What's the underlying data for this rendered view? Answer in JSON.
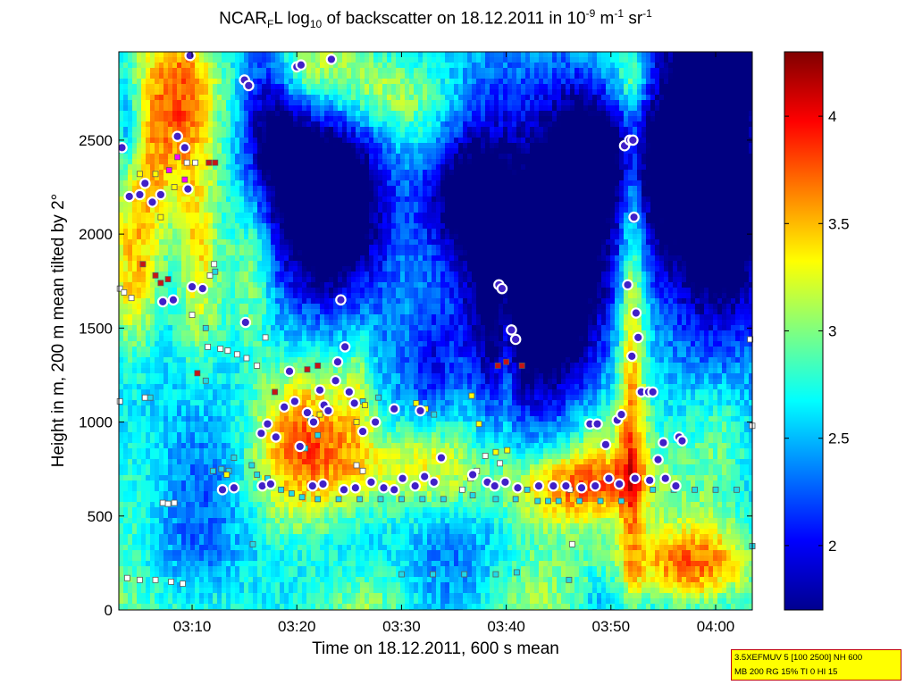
{
  "title": {
    "prefix": "NCAR",
    "sub1": "F",
    "mid": "L log",
    "sub2": "10",
    "text": " of backscatter on 18.12.2011 in 10",
    "sup1": "-9",
    "unit1": " m",
    "sup2": "-1",
    "unit2": " sr",
    "sup3": "-1"
  },
  "info_box": {
    "line1": "3.5XEFMUV 5 [100 2500] NH 600",
    "line2": "MB 200 RG 15% TI 0 HI 15"
  },
  "colors": {
    "colormap": "jet",
    "axis": "#000000",
    "marker_edge": "#ffffff",
    "marker_fill": "#4020c8",
    "background": "#ffffff"
  },
  "chart_data": {
    "type": "heatmap",
    "title": "NCARFL log10 of backscatter on 18.12.2011 in 10-9 m-1 sr-1",
    "xlabel": "Time on 18.12.2011, 600 s mean",
    "ylabel": "Height in m, 200 m mean tilted by 2°",
    "x_range_minutes": [
      3.0,
      63.5
    ],
    "x_ticks": [
      {
        "label": "03:10",
        "minutes": 10
      },
      {
        "label": "03:20",
        "minutes": 20
      },
      {
        "label": "03:30",
        "minutes": 30
      },
      {
        "label": "03:40",
        "minutes": 40
      },
      {
        "label": "03:50",
        "minutes": 50
      },
      {
        "label": "04:00",
        "minutes": 60
      }
    ],
    "ylim": [
      0,
      2970
    ],
    "y_ticks": [
      0,
      500,
      1000,
      1500,
      2000,
      2500
    ],
    "colorbar": {
      "range": [
        1.7,
        4.3
      ],
      "ticks": [
        {
          "label": "2",
          "value": 2
        },
        {
          "label": "2.5",
          "value": 2.5
        },
        {
          "label": "3",
          "value": 3
        },
        {
          "label": "3.5",
          "value": 3.5
        },
        {
          "label": "4",
          "value": 4
        }
      ]
    },
    "cloud_base_points": [
      [
        3.3,
        2460
      ],
      [
        4.0,
        2200
      ],
      [
        5.0,
        2210
      ],
      [
        5.5,
        2270
      ],
      [
        6.2,
        2170
      ],
      [
        7.0,
        2210
      ],
      [
        8.6,
        2520
      ],
      [
        9.3,
        2460
      ],
      [
        9.6,
        2240
      ],
      [
        7.2,
        1640
      ],
      [
        8.2,
        1650
      ],
      [
        10.0,
        1720
      ],
      [
        11.0,
        1710
      ],
      [
        9.8,
        2950
      ],
      [
        15.0,
        2820
      ],
      [
        15.4,
        2790
      ],
      [
        15.1,
        1530
      ],
      [
        16.6,
        940
      ],
      [
        17.2,
        990
      ],
      [
        18.0,
        920
      ],
      [
        18.8,
        1080
      ],
      [
        19.3,
        1270
      ],
      [
        19.8,
        1110
      ],
      [
        20.3,
        870
      ],
      [
        21.0,
        1050
      ],
      [
        21.6,
        1000
      ],
      [
        22.2,
        1170
      ],
      [
        22.6,
        1090
      ],
      [
        23.0,
        1060
      ],
      [
        23.7,
        1220
      ],
      [
        23.9,
        1320
      ],
      [
        24.2,
        1650
      ],
      [
        24.6,
        1400
      ],
      [
        25.0,
        1160
      ],
      [
        25.5,
        1100
      ],
      [
        26.3,
        950
      ],
      [
        27.5,
        1000
      ],
      [
        29.3,
        1070
      ],
      [
        31.8,
        1060
      ],
      [
        33.8,
        810
      ],
      [
        20.0,
        2890
      ],
      [
        20.4,
        2900
      ],
      [
        23.3,
        2930
      ],
      [
        39.3,
        1730
      ],
      [
        39.6,
        1710
      ],
      [
        40.5,
        1490
      ],
      [
        40.9,
        1440
      ],
      [
        48.0,
        990
      ],
      [
        48.7,
        990
      ],
      [
        49.5,
        880
      ],
      [
        50.6,
        1010
      ],
      [
        51.0,
        1040
      ],
      [
        52.0,
        1350
      ],
      [
        51.6,
        1730
      ],
      [
        51.3,
        2470
      ],
      [
        51.8,
        2500
      ],
      [
        52.1,
        2500
      ],
      [
        52.2,
        2090
      ],
      [
        52.4,
        1580
      ],
      [
        52.6,
        1450
      ],
      [
        52.9,
        1160
      ],
      [
        53.6,
        1160
      ],
      [
        54.0,
        1160
      ],
      [
        55.0,
        890
      ],
      [
        56.5,
        920
      ],
      [
        56.8,
        900
      ],
      [
        12.9,
        640
      ],
      [
        14.0,
        650
      ],
      [
        16.7,
        660
      ],
      [
        17.5,
        670
      ],
      [
        21.5,
        660
      ],
      [
        22.5,
        670
      ],
      [
        24.5,
        640
      ],
      [
        25.6,
        650
      ],
      [
        27.1,
        680
      ],
      [
        28.3,
        650
      ],
      [
        29.3,
        640
      ],
      [
        30.1,
        700
      ],
      [
        31.3,
        660
      ],
      [
        32.2,
        710
      ],
      [
        33.1,
        680
      ],
      [
        36.8,
        720
      ],
      [
        38.2,
        680
      ],
      [
        38.9,
        660
      ],
      [
        39.9,
        680
      ],
      [
        41.1,
        650
      ],
      [
        43.1,
        660
      ],
      [
        44.5,
        660
      ],
      [
        45.7,
        660
      ],
      [
        47.2,
        650
      ],
      [
        48.5,
        660
      ],
      [
        49.8,
        700
      ],
      [
        50.8,
        670
      ],
      [
        52.3,
        700
      ],
      [
        53.7,
        690
      ],
      [
        55.2,
        700
      ],
      [
        56.2,
        660
      ],
      [
        54.5,
        800
      ]
    ],
    "layer_squares": [
      {
        "color": "#ffffff",
        "points": [
          [
            3.1,
            1710
          ],
          [
            3.5,
            1690
          ],
          [
            4.2,
            1660
          ],
          [
            5.5,
            1130
          ],
          [
            7.2,
            570
          ],
          [
            7.7,
            565
          ],
          [
            8.3,
            570
          ],
          [
            9.5,
            2380
          ],
          [
            10.3,
            2380
          ],
          [
            11.7,
            1780
          ],
          [
            12.1,
            1840
          ],
          [
            10.0,
            1570
          ],
          [
            11.5,
            1400
          ],
          [
            12.7,
            1390
          ],
          [
            13.4,
            1380
          ],
          [
            14.3,
            1360
          ],
          [
            15.2,
            1340
          ],
          [
            16.2,
            1300
          ],
          [
            17.0,
            1450
          ],
          [
            3.1,
            1110
          ],
          [
            3.8,
            170
          ],
          [
            5.0,
            160
          ],
          [
            6.5,
            160
          ],
          [
            8.0,
            150
          ],
          [
            9.1,
            140
          ],
          [
            25.7,
            770
          ],
          [
            26.3,
            740
          ],
          [
            35.8,
            640
          ],
          [
            36.6,
            700
          ],
          [
            37.2,
            740
          ],
          [
            38.0,
            820
          ],
          [
            39.4,
            780
          ],
          [
            46.1,
            640
          ],
          [
            46.3,
            350
          ],
          [
            63.3,
            1440
          ],
          [
            63.5,
            980
          ],
          [
            63.5,
            340
          ]
        ]
      },
      {
        "color": "#20d8e8",
        "points": [
          [
            6.0,
            1130
          ],
          [
            11.3,
            1500
          ],
          [
            11.3,
            1220
          ],
          [
            12.0,
            740
          ],
          [
            12.8,
            750
          ],
          [
            13.5,
            740
          ],
          [
            14.0,
            810
          ],
          [
            15.7,
            770
          ],
          [
            16.2,
            720
          ],
          [
            17.2,
            700
          ],
          [
            18.5,
            640
          ],
          [
            19.5,
            620
          ],
          [
            20.5,
            600
          ],
          [
            22.0,
            590
          ],
          [
            24.0,
            590
          ],
          [
            26.0,
            590
          ],
          [
            28.0,
            590
          ],
          [
            30.0,
            590
          ],
          [
            32.0,
            590
          ],
          [
            34.0,
            590
          ],
          [
            20.8,
            860
          ],
          [
            21.3,
            1020
          ],
          [
            22.0,
            930
          ],
          [
            27.8,
            1130
          ],
          [
            33.1,
            1040
          ],
          [
            39.0,
            590
          ],
          [
            40.9,
            590
          ],
          [
            42.0,
            640
          ],
          [
            43.0,
            580
          ],
          [
            44.0,
            580
          ],
          [
            45.0,
            580
          ],
          [
            47.0,
            580
          ],
          [
            49.0,
            580
          ],
          [
            51.0,
            580
          ],
          [
            54.0,
            640
          ],
          [
            56.0,
            640
          ],
          [
            58.0,
            640
          ],
          [
            60.0,
            640
          ],
          [
            62.0,
            640
          ],
          [
            30.0,
            190
          ],
          [
            33.0,
            190
          ],
          [
            36.0,
            190
          ],
          [
            39.0,
            190
          ],
          [
            41.0,
            200
          ],
          [
            15.8,
            350
          ],
          [
            26.3,
            1110
          ],
          [
            36.8,
            610
          ],
          [
            46.0,
            160
          ],
          [
            63.5,
            340
          ],
          [
            12.2,
            1800
          ]
        ]
      },
      {
        "color": "#ffff00",
        "points": [
          [
            5.0,
            2320
          ],
          [
            6.5,
            2320
          ],
          [
            7.0,
            2090
          ],
          [
            8.3,
            2250
          ],
          [
            25.7,
            1000
          ],
          [
            26.5,
            1090
          ],
          [
            31.4,
            1100
          ],
          [
            32.3,
            1070
          ],
          [
            39.0,
            840
          ],
          [
            40.1,
            850
          ],
          [
            22.2,
            1040
          ],
          [
            13.3,
            720
          ],
          [
            36.7,
            1140
          ],
          [
            37.4,
            990
          ]
        ]
      },
      {
        "color": "#ff00ff",
        "points": [
          [
            7.8,
            2340
          ],
          [
            8.6,
            2410
          ],
          [
            9.3,
            2290
          ]
        ]
      },
      {
        "color": "#c81414",
        "points": [
          [
            5.3,
            1840
          ],
          [
            6.5,
            1780
          ],
          [
            7.7,
            1760
          ],
          [
            10.5,
            1260
          ],
          [
            11.6,
            2380
          ],
          [
            12.2,
            2380
          ],
          [
            39.2,
            1300
          ],
          [
            40.0,
            1320
          ],
          [
            41.5,
            1300
          ],
          [
            17.9,
            1160
          ],
          [
            21.0,
            1280
          ],
          [
            22.0,
            1300
          ],
          [
            7.0,
            1740
          ]
        ]
      }
    ]
  }
}
